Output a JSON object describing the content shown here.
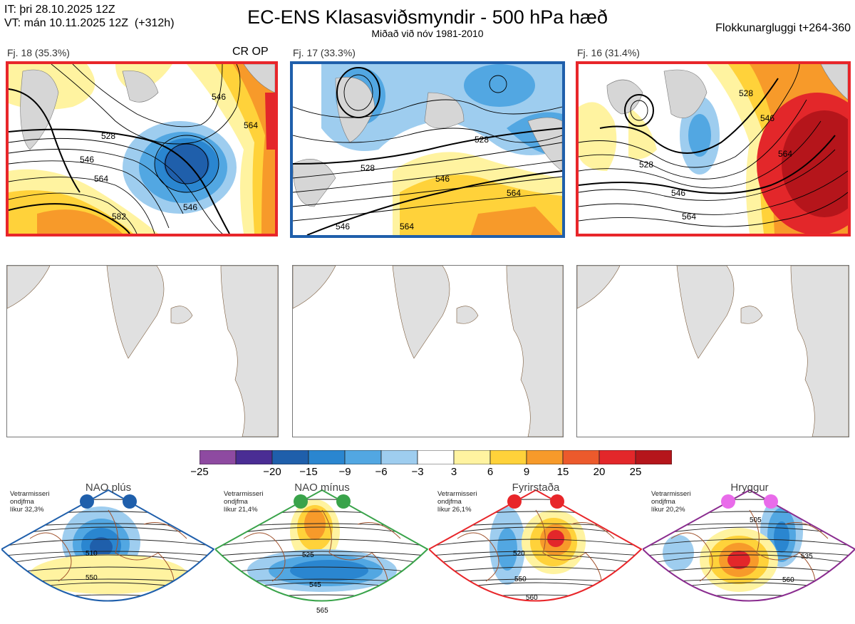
{
  "header": {
    "it_line": "IT: þri 28.10.2025 12Z",
    "vt_line": "VT: mán 10.11.2025 12Z  (+312h)",
    "title": "EC-ENS Klasasviðsmyndir - 500 hPa hæð",
    "subtitle": "Miðað við nóv 1981-2010",
    "window": "Flokkunargluggi t+264-360"
  },
  "clusters": [
    {
      "label": "Fj. 18 (35.3%)",
      "tag": "CR OP",
      "border": "#e8262a",
      "contours": [
        "528",
        "546",
        "564",
        "546",
        "582",
        "546",
        "564"
      ]
    },
    {
      "label": "Fj. 17 (33.3%)",
      "tag": "",
      "border": "#1f5fab",
      "contours": [
        "528",
        "528",
        "546",
        "564",
        "546",
        "564"
      ]
    },
    {
      "label": "Fj. 16 (31.4%)",
      "tag": "",
      "border": "#e8262a",
      "contours": [
        "528",
        "528",
        "546",
        "564",
        "546",
        "564"
      ]
    }
  ],
  "colorbar": {
    "colors": [
      "#8e4aa1",
      "#4a2d94",
      "#1f5fab",
      "#2a86d0",
      "#52a7e2",
      "#9ecdef",
      "#ffffff",
      "#fff3a0",
      "#ffd23a",
      "#f79a2a",
      "#ec5a2c",
      "#e3272a",
      "#b5151b"
    ],
    "labels": [
      "−25",
      "−20",
      "−15",
      "−9",
      "−6",
      "−3",
      "3",
      "6",
      "9",
      "15",
      "20",
      "25"
    ]
  },
  "regimes": [
    {
      "title": "NAO plús",
      "note": "Vetrarmisseri\nondjfma\nlíkur 32,3%",
      "color": "#1f5fab",
      "dot": "#1f5fab",
      "contours": [
        "510",
        "550"
      ]
    },
    {
      "title": "NAO mínus",
      "note": "Vetrarmisseri\nondjfma\nlíkur 21,4%",
      "color": "#39a34a",
      "dot": "#39a34a",
      "contours": [
        "525",
        "545",
        "565"
      ]
    },
    {
      "title": "Fyrirstaða",
      "note": "Vetrarmisseri\nondjfma\nlíkur 26,1%",
      "color": "#e8262a",
      "dot": "#e8262a",
      "contours": [
        "520",
        "550",
        "560"
      ]
    },
    {
      "title": "Hryggur",
      "note": "Vetrarmisseri\nondjfma\nlíkur 20,2%",
      "color": "#8a2c8f",
      "dot": "#e96bea",
      "contours": [
        "505",
        "535",
        "560"
      ]
    }
  ]
}
